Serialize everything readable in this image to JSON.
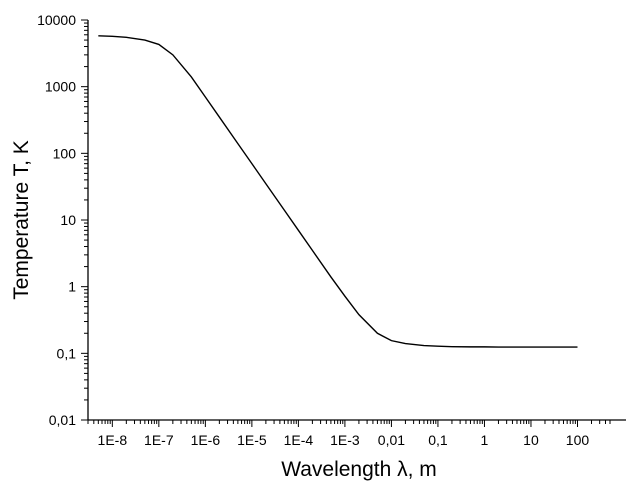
{
  "chart_data": {
    "type": "line",
    "title": "",
    "xlabel": "Wavelength λ, m",
    "ylabel": "Temperature  T, K",
    "x_scale": "log",
    "y_scale": "log",
    "xlim": [
      3e-09,
      500
    ],
    "ylim": [
      0.01,
      10000
    ],
    "grid": false,
    "legend": "none",
    "line_color": "#000000",
    "x_ticks": [
      {
        "value": 1e-08,
        "label": "1E-8"
      },
      {
        "value": 1e-07,
        "label": "1E-7"
      },
      {
        "value": 1e-06,
        "label": "1E-6"
      },
      {
        "value": 1e-05,
        "label": "1E-5"
      },
      {
        "value": 0.0001,
        "label": "1E-4"
      },
      {
        "value": 0.001,
        "label": "1E-3"
      },
      {
        "value": 0.01,
        "label": "0,01"
      },
      {
        "value": 0.1,
        "label": "0,1"
      },
      {
        "value": 1,
        "label": "1"
      },
      {
        "value": 10,
        "label": "10"
      },
      {
        "value": 100,
        "label": "100"
      }
    ],
    "y_ticks": [
      {
        "value": 0.01,
        "label": "0,01"
      },
      {
        "value": 0.1,
        "label": "0,1"
      },
      {
        "value": 1,
        "label": "1"
      },
      {
        "value": 10,
        "label": "10"
      },
      {
        "value": 100,
        "label": "100"
      },
      {
        "value": 1000,
        "label": "1000"
      },
      {
        "value": 10000,
        "label": "10000"
      }
    ],
    "series": [
      {
        "x": [
          5e-09,
          1e-08,
          2e-08,
          5e-08,
          1e-07,
          2e-07,
          5e-07,
          1e-06,
          2e-06,
          5e-06,
          1e-05,
          2e-05,
          5e-05,
          0.0001,
          0.0002,
          0.0005,
          0.001,
          0.002,
          0.005,
          0.01,
          0.02,
          0.05,
          0.1,
          0.2,
          0.5,
          1,
          2,
          5,
          10,
          20,
          50,
          100
        ],
        "y": [
          5800,
          5700,
          5500,
          5000,
          4300,
          3000,
          1400,
          700,
          350,
          140,
          70,
          35,
          14,
          7,
          3.5,
          1.4,
          0.72,
          0.38,
          0.2,
          0.155,
          0.14,
          0.131,
          0.128,
          0.126,
          0.125,
          0.125,
          0.124,
          0.124,
          0.124,
          0.124,
          0.124,
          0.124
        ]
      }
    ]
  }
}
